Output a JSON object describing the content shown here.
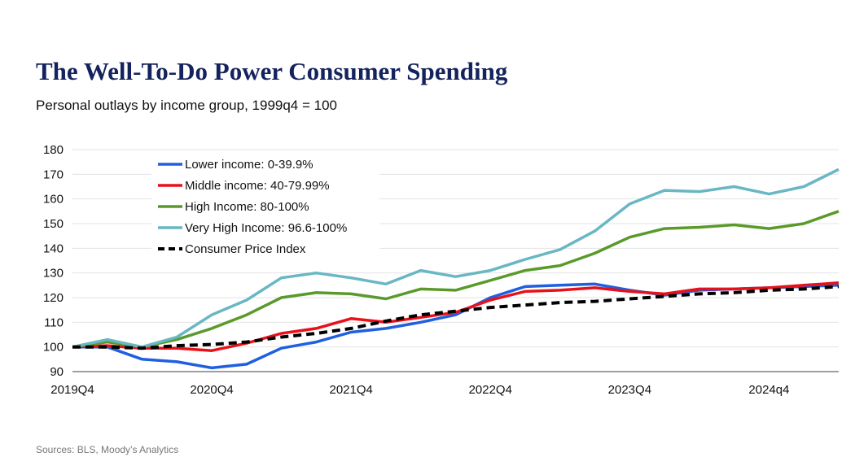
{
  "title": "The Well-To-Do Power Consumer Spending",
  "subtitle": "Personal outlays by income group, 1999q4 = 100",
  "source": "Sources: BLS, Moody’s Analytics",
  "chart_data": {
    "type": "line",
    "title": "The Well-To-Do Power Consumer Spending",
    "subtitle": "Personal outlays by income group, 1999q4 = 100",
    "ylim": [
      90,
      180
    ],
    "yticks": [
      90,
      100,
      110,
      120,
      130,
      140,
      150,
      160,
      170,
      180
    ],
    "x": [
      "2019Q4",
      "2020Q1",
      "2020Q2",
      "2020Q3",
      "2020Q4",
      "2021Q1",
      "2021Q2",
      "2021Q3",
      "2021Q4",
      "2022Q1",
      "2022Q2",
      "2022Q3",
      "2022Q4",
      "2023Q1",
      "2023Q2",
      "2023Q3",
      "2023Q4",
      "2024Q1",
      "2024Q2",
      "2024Q3",
      "2024q4",
      "2025Q1",
      "2025Q2"
    ],
    "xtick_labels": [
      {
        "index": 0,
        "label": "2019Q4"
      },
      {
        "index": 4,
        "label": "2020Q4"
      },
      {
        "index": 8,
        "label": "2021Q4"
      },
      {
        "index": 12,
        "label": "2022Q4"
      },
      {
        "index": 16,
        "label": "2023Q4"
      },
      {
        "index": 20,
        "label": "2024q4"
      }
    ],
    "grid": true,
    "legend_position": "top-left",
    "series": [
      {
        "name": "Lower income: 0-39.9%",
        "color": "#1f5fe0",
        "dash": false,
        "values": [
          100,
          100,
          95,
          94,
          91.5,
          93,
          99.5,
          102,
          106,
          107.5,
          110,
          113,
          120,
          124.5,
          125,
          125.5,
          123,
          121,
          123,
          123.5,
          124,
          124.5,
          125
        ]
      },
      {
        "name": "Middle income: 40-79.99%",
        "color": "#e8111a",
        "dash": false,
        "values": [
          100,
          100.5,
          99.5,
          99.5,
          98.5,
          101.5,
          105.5,
          107.5,
          111.5,
          110,
          112,
          114,
          119,
          122.5,
          123,
          124,
          122.5,
          121.5,
          123.5,
          123.5,
          124,
          125,
          126
        ]
      },
      {
        "name": "High Income: 80-100%",
        "color": "#5a9a2a",
        "dash": false,
        "values": [
          100,
          102,
          100,
          103,
          107.5,
          113,
          120,
          122,
          121.5,
          119.5,
          123.5,
          123,
          127,
          131,
          133,
          138,
          144.5,
          148,
          148.5,
          149.5,
          148,
          150,
          155
        ]
      },
      {
        "name": "Very High Income: 96.6-100%",
        "color": "#69b7c4",
        "dash": false,
        "values": [
          100,
          103,
          100,
          104,
          113,
          119,
          128,
          130,
          128,
          125.5,
          131,
          128.5,
          131,
          135.5,
          139.5,
          147,
          158,
          163.5,
          163,
          165,
          162,
          165,
          172
        ]
      },
      {
        "name": "Consumer Price Index",
        "color": "#000000",
        "dash": true,
        "values": [
          100,
          100,
          99.5,
          100.5,
          101,
          102,
          104,
          105.5,
          107.5,
          110.5,
          113,
          114.5,
          116,
          117,
          118,
          118.5,
          119.5,
          120.5,
          121.5,
          122,
          123,
          123.5,
          124.5
        ]
      }
    ]
  }
}
